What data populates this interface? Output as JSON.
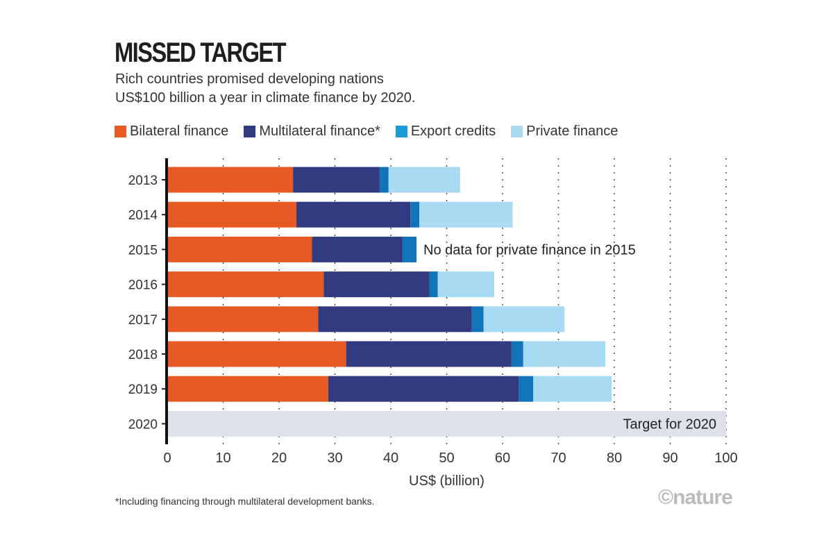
{
  "title": "MISSED TARGET",
  "subtitle": [
    "Rich countries promised developing nations",
    "US$100 billion a year in climate finance by 2020."
  ],
  "footnote": "*Including financing through multilateral development banks.",
  "logo": "©nature",
  "chart_data": {
    "type": "bar",
    "orientation": "horizontal",
    "stacked": true,
    "categories": [
      "2013",
      "2014",
      "2015",
      "2016",
      "2017",
      "2018",
      "2019",
      "2020"
    ],
    "series": [
      {
        "name": "Bilateral finance",
        "color": "#e85a24",
        "values": [
          22.5,
          23.1,
          25.9,
          28.0,
          27.0,
          32.0,
          28.8,
          null
        ]
      },
      {
        "name": "Multilateral finance*",
        "color": "#323a80",
        "values": [
          15.5,
          20.4,
          16.2,
          18.9,
          27.5,
          29.6,
          34.1,
          null
        ]
      },
      {
        "name": "Export credits",
        "color": "#1173b8",
        "legend_color": "#1d9ad8",
        "values": [
          1.6,
          1.6,
          2.5,
          1.5,
          2.1,
          2.1,
          2.6,
          null
        ]
      },
      {
        "name": "Private finance",
        "color": "#a9daf3",
        "values": [
          12.8,
          16.7,
          null,
          10.1,
          14.5,
          14.7,
          14.0,
          null
        ]
      }
    ],
    "target": {
      "category": "2020",
      "value": 100,
      "label": "Target for 2020",
      "color": "#dde2e9"
    },
    "annotation": {
      "category": "2015",
      "text": "No data for private finance in 2015"
    },
    "xlabel": "US$ (billion)",
    "xlim": [
      0,
      100
    ],
    "xticks": [
      "0",
      "10",
      "20",
      "30",
      "40",
      "50",
      "60",
      "70",
      "80",
      "90",
      "100"
    ],
    "grid": "vertical dotted",
    "legend": "top"
  }
}
